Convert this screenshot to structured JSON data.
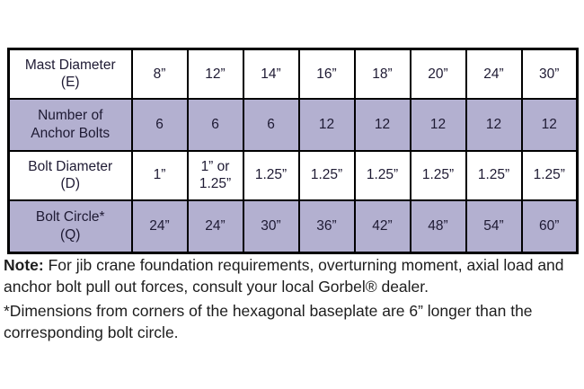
{
  "colors": {
    "shaded_row_background": "#b3b0d0",
    "plain_row_background": "#ffffff",
    "table_border": "#000000",
    "table_text": "#1e1a33",
    "note_text": "#1d1d1d"
  },
  "table": {
    "rows": [
      {
        "header_lines": [
          "Mast Diameter",
          "(E)"
        ],
        "values": [
          "8”",
          "12”",
          "14”",
          "16”",
          "18”",
          "20”",
          "24”",
          "30”"
        ],
        "shaded": false
      },
      {
        "header_lines": [
          "Number of",
          "Anchor Bolts"
        ],
        "values": [
          "6",
          "6",
          "6",
          "12",
          "12",
          "12",
          "12",
          "12"
        ],
        "shaded": true
      },
      {
        "header_lines": [
          "Bolt Diameter",
          "(D)"
        ],
        "values": [
          "1”",
          "1” or 1.25”",
          "1.25”",
          "1.25”",
          "1.25”",
          "1.25”",
          "1.25”",
          "1.25”"
        ],
        "shaded": false
      },
      {
        "header_lines": [
          "Bolt Circle*",
          "(Q)"
        ],
        "values": [
          "24”",
          "24”",
          "30”",
          "36”",
          "42”",
          "48”",
          "54”",
          "60”"
        ],
        "shaded": true
      }
    ]
  },
  "note": {
    "label": "Note:",
    "body": "For jib crane foundation requirements, overturning moment, axial load and anchor bolt pull out forces, consult your local Gorbel® dealer.",
    "footnote": "*Dimensions from corners of the hexagonal baseplate are 6” longer than the corresponding bolt circle."
  }
}
